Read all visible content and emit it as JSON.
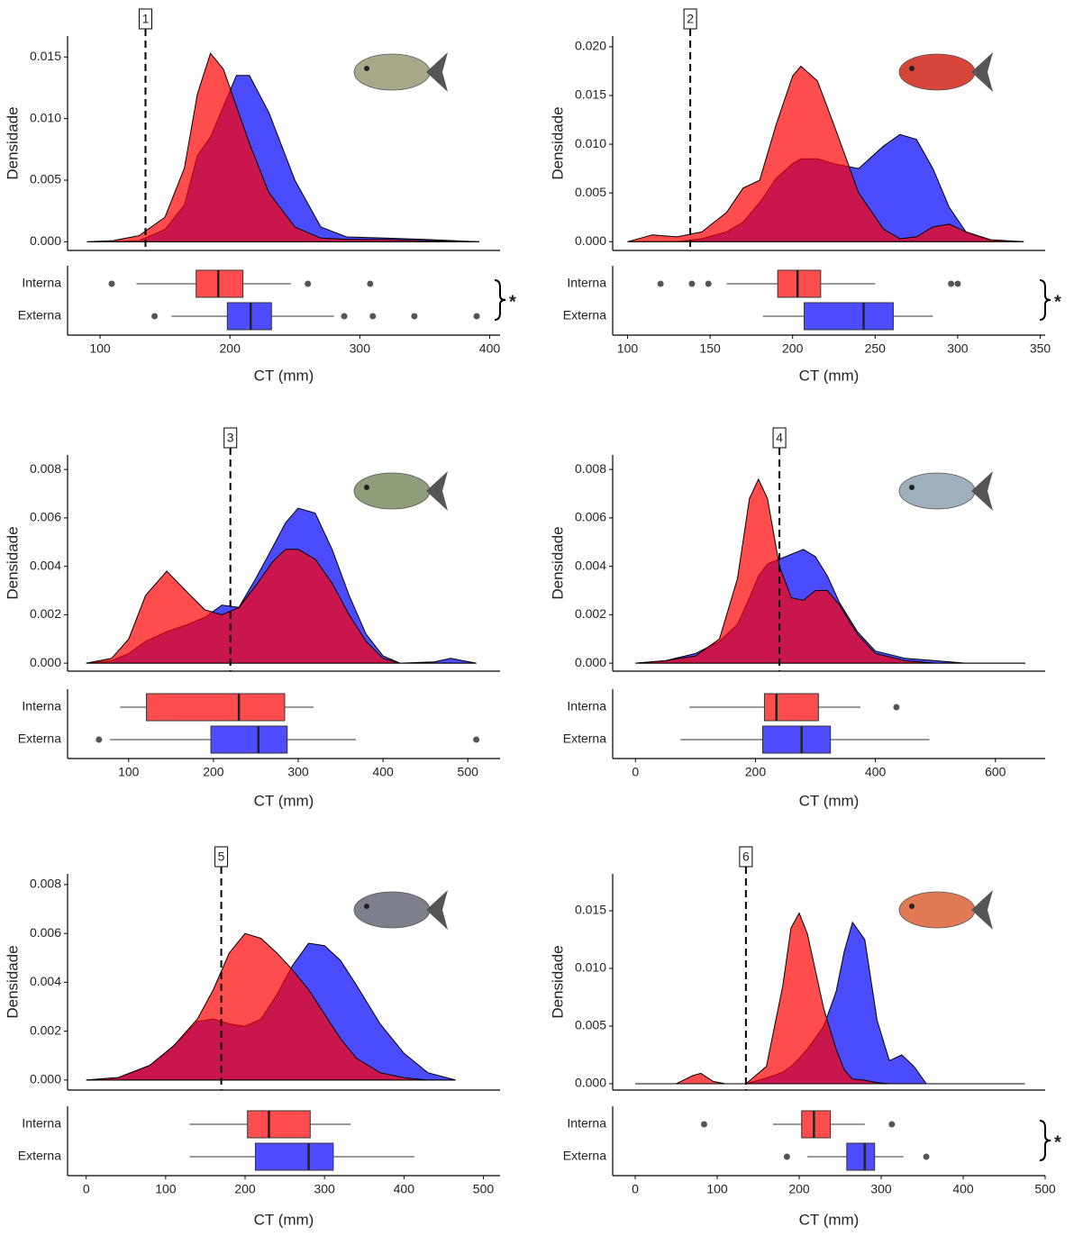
{
  "chart_data": [
    {
      "type": "density",
      "label": "1",
      "ylabel": "Densidade",
      "xlabel": "CT (mm)",
      "cutoff": 135,
      "xlim": [
        75,
        408
      ],
      "xticks": [
        100,
        200,
        300,
        400
      ],
      "ylim": [
        -0.0007,
        0.0167
      ],
      "yticks": [
        {
          "value": 0,
          "label": "0.000"
        },
        0.005,
        {
          "value": 0.01,
          "label": "0.010"
        },
        0.015
      ],
      "x": [
        90,
        110,
        130,
        150,
        165,
        175,
        185,
        195,
        205,
        215,
        230,
        250,
        270,
        290,
        320,
        350,
        392
      ],
      "series": [
        {
          "name": "Interna",
          "color": "#ff4d4d",
          "values": [
            0,
            0.0001,
            0.0005,
            0.002,
            0.006,
            0.012,
            0.0153,
            0.014,
            0.011,
            0.008,
            0.004,
            0.0012,
            0.0003,
            0.0002,
            0.0002,
            0.0001,
            0
          ],
          "box": {
            "whislo": 128,
            "q1": 174,
            "med": 191,
            "q3": 210,
            "whishi": 247,
            "fliers": [
              109,
              260,
              308
            ]
          }
        },
        {
          "name": "Externa",
          "color": "#4d4dff",
          "values": [
            0,
            0,
            0.0001,
            0.001,
            0.003,
            0.007,
            0.0085,
            0.011,
            0.0135,
            0.0135,
            0.0105,
            0.005,
            0.0012,
            0.0004,
            0.0003,
            0.0002,
            0
          ],
          "box": {
            "whislo": 155,
            "q1": 198,
            "med": 216,
            "q3": 232,
            "whishi": 280,
            "fliers": [
              142,
              288,
              310,
              342,
              390
            ]
          }
        }
      ],
      "significance": "*"
    },
    {
      "type": "density",
      "label": "2",
      "ylabel": "Densidade",
      "xlabel": "CT (mm)",
      "cutoff": 138,
      "xlim": [
        91,
        353
      ],
      "xticks": [
        100,
        150,
        200,
        250,
        300,
        350
      ],
      "ylim": [
        -0.0009,
        0.0211
      ],
      "yticks": [
        {
          "value": 0,
          "label": "0.000"
        },
        0.005,
        {
          "value": 0.01,
          "label": "0.010"
        },
        0.015,
        {
          "value": 0.02,
          "label": "0.020"
        }
      ],
      "x": [
        100,
        115,
        130,
        145,
        160,
        170,
        180,
        190,
        200,
        205,
        215,
        225,
        240,
        255,
        265,
        275,
        285,
        295,
        305,
        320,
        340
      ],
      "series": [
        {
          "name": "Interna",
          "color": "#ff4d4d",
          "values": [
            0,
            0.0007,
            0.0005,
            0.001,
            0.003,
            0.0055,
            0.0063,
            0.012,
            0.017,
            0.018,
            0.0165,
            0.012,
            0.005,
            0.0013,
            0.0003,
            0.0005,
            0.0015,
            0.0018,
            0.001,
            0.0002,
            0
          ],
          "box": {
            "whislo": 160,
            "q1": 191,
            "med": 203,
            "q3": 217,
            "whishi": 250,
            "fliers": [
              120,
              139,
              149,
              296,
              300
            ]
          }
        },
        {
          "name": "Externa",
          "color": "#4d4dff",
          "values": [
            0,
            0,
            0,
            0.0003,
            0.001,
            0.002,
            0.004,
            0.0065,
            0.008,
            0.0085,
            0.0085,
            0.008,
            0.0075,
            0.0098,
            0.011,
            0.0105,
            0.0075,
            0.0035,
            0.001,
            0.0001,
            0
          ],
          "box": {
            "whislo": 182,
            "q1": 207,
            "med": 243,
            "q3": 261,
            "whishi": 285,
            "fliers": []
          }
        }
      ],
      "significance": "*"
    },
    {
      "type": "density",
      "label": "3",
      "ylabel": "Densidade",
      "xlabel": "CT (mm)",
      "cutoff": 220,
      "xlim": [
        28,
        538
      ],
      "xticks": [
        100,
        200,
        300,
        400,
        500
      ],
      "ylim": [
        -0.00033,
        0.0086
      ],
      "yticks": [
        {
          "value": 0,
          "label": "0.000"
        },
        0.002,
        0.004,
        0.006,
        0.008
      ],
      "x": [
        50,
        80,
        100,
        120,
        145,
        170,
        190,
        210,
        230,
        250,
        270,
        285,
        300,
        320,
        340,
        360,
        380,
        400,
        420,
        460,
        480,
        510
      ],
      "series": [
        {
          "name": "Interna",
          "color": "#ff4d4d",
          "values": [
            0,
            0.0002,
            0.001,
            0.0028,
            0.0038,
            0.0029,
            0.0022,
            0.002,
            0.0023,
            0.0032,
            0.0042,
            0.0047,
            0.0047,
            0.0043,
            0.0033,
            0.002,
            0.0009,
            0.0002,
            0,
            0,
            0,
            0
          ],
          "box": {
            "whislo": 90,
            "q1": 121,
            "med": 230,
            "q3": 284,
            "whishi": 318,
            "fliers": []
          }
        },
        {
          "name": "Externa",
          "color": "#4d4dff",
          "values": [
            0,
            0.0001,
            0.0004,
            0.0009,
            0.0013,
            0.0016,
            0.0019,
            0.0024,
            0.0023,
            0.0035,
            0.0048,
            0.0058,
            0.0064,
            0.0062,
            0.0047,
            0.0028,
            0.0012,
            0.0003,
            0,
            5e-05,
            0.0002,
            0
          ],
          "box": {
            "whislo": 78,
            "q1": 197,
            "med": 253,
            "q3": 287,
            "whishi": 368,
            "fliers": [
              65,
              510
            ]
          }
        }
      ]
    },
    {
      "type": "density",
      "label": "4",
      "ylabel": "Densidade",
      "xlabel": "CT (mm)",
      "cutoff": 240,
      "xlim": [
        -38,
        683
      ],
      "xticks": [
        0,
        200,
        400,
        600
      ],
      "ylim": [
        -0.00033,
        0.0086
      ],
      "yticks": [
        {
          "value": 0,
          "label": "0.000"
        },
        0.002,
        0.004,
        0.006,
        0.008
      ],
      "x": [
        0,
        50,
        100,
        140,
        170,
        190,
        205,
        220,
        240,
        260,
        280,
        300,
        320,
        340,
        370,
        400,
        450,
        500,
        550,
        650
      ],
      "series": [
        {
          "name": "Interna",
          "color": "#ff4d4d",
          "values": [
            0,
            0.0001,
            0.0003,
            0.001,
            0.0035,
            0.0068,
            0.0076,
            0.0068,
            0.004,
            0.0027,
            0.0026,
            0.003,
            0.003,
            0.0024,
            0.0012,
            0.0004,
            0.0001,
            0,
            0,
            0
          ],
          "box": {
            "whislo": 90,
            "q1": 215,
            "med": 235,
            "q3": 305,
            "whishi": 375,
            "fliers": [
              435
            ]
          }
        },
        {
          "name": "Externa",
          "color": "#4d4dff",
          "values": [
            0,
            0.0001,
            0.0004,
            0.0009,
            0.0016,
            0.0027,
            0.0036,
            0.0041,
            0.0043,
            0.0045,
            0.0047,
            0.0044,
            0.0036,
            0.0025,
            0.0013,
            0.0005,
            0.0002,
            0.0001,
            0,
            0
          ],
          "box": {
            "whislo": 75,
            "q1": 212,
            "med": 277,
            "q3": 325,
            "whishi": 490,
            "fliers": []
          }
        }
      ]
    },
    {
      "type": "density",
      "label": "5",
      "ylabel": "Densidade",
      "xlabel": "CT (mm)",
      "cutoff": 170,
      "xlim": [
        -23.5,
        521
      ],
      "xticks": [
        0,
        100,
        200,
        300,
        400,
        500
      ],
      "ylim": [
        -0.00041,
        0.00844
      ],
      "yticks": [
        {
          "value": 0,
          "label": "0.000"
        },
        0.002,
        0.004,
        0.006,
        0.008
      ],
      "x": [
        0,
        40,
        80,
        110,
        140,
        160,
        180,
        200,
        220,
        240,
        260,
        280,
        300,
        320,
        340,
        370,
        400,
        430,
        465
      ],
      "series": [
        {
          "name": "Interna",
          "color": "#ff4d4d",
          "values": [
            0,
            0.0001,
            0.0006,
            0.0014,
            0.0025,
            0.0037,
            0.0052,
            0.006,
            0.0058,
            0.0052,
            0.0045,
            0.0037,
            0.0027,
            0.0017,
            0.0009,
            0.0003,
            0.0001,
            0,
            0
          ],
          "box": {
            "whislo": 130,
            "q1": 203,
            "med": 230,
            "q3": 282,
            "whishi": 333,
            "fliers": []
          }
        },
        {
          "name": "Externa",
          "color": "#4d4dff",
          "values": [
            0,
            0.0001,
            0.0006,
            0.0014,
            0.0024,
            0.0025,
            0.0023,
            0.0022,
            0.0025,
            0.0035,
            0.0047,
            0.0056,
            0.0055,
            0.0049,
            0.0039,
            0.0023,
            0.0011,
            0.0003,
            0
          ],
          "box": {
            "whislo": 130,
            "q1": 213,
            "med": 280,
            "q3": 311,
            "whishi": 413,
            "fliers": []
          }
        }
      ]
    },
    {
      "type": "density",
      "label": "6",
      "ylabel": "Densidade",
      "xlabel": "CT (mm)",
      "cutoff": 135,
      "xlim": [
        -27.5,
        500
      ],
      "xticks": [
        0,
        100,
        200,
        300,
        400,
        500
      ],
      "ylim": [
        -0.00055,
        0.0182
      ],
      "yticks": [
        {
          "value": 0,
          "label": "0.000"
        },
        0.005,
        {
          "value": 0.01,
          "label": "0.010"
        },
        0.015
      ],
      "x": [
        0,
        50,
        70,
        80,
        95,
        110,
        135,
        160,
        180,
        190,
        200,
        210,
        230,
        245,
        255,
        265,
        280,
        295,
        310,
        325,
        340,
        355,
        475
      ],
      "series": [
        {
          "name": "Interna",
          "color": "#ff4d4d",
          "values": [
            0,
            0,
            0.0007,
            0.0009,
            0.0002,
            0,
            0,
            0.0015,
            0.0085,
            0.0135,
            0.0148,
            0.013,
            0.0065,
            0.003,
            0.0012,
            0.0004,
            0.0003,
            0.0001,
            0,
            0,
            0,
            0,
            0
          ],
          "box": {
            "whislo": 168,
            "q1": 203,
            "med": 218,
            "q3": 238,
            "whishi": 280,
            "fliers": [
              84,
              313
            ]
          }
        },
        {
          "name": "Externa",
          "color": "#4d4dff",
          "values": [
            0,
            0,
            0,
            0,
            0,
            0,
            0,
            0.0005,
            0.001,
            0.0015,
            0.0022,
            0.003,
            0.005,
            0.008,
            0.0115,
            0.014,
            0.0125,
            0.0055,
            0.002,
            0.0025,
            0.0015,
            0,
            0
          ],
          "box": {
            "whislo": 210,
            "q1": 258,
            "med": 280,
            "q3": 292,
            "whishi": 327,
            "fliers": [
              185,
              355
            ]
          }
        }
      ],
      "significance": "*"
    }
  ]
}
